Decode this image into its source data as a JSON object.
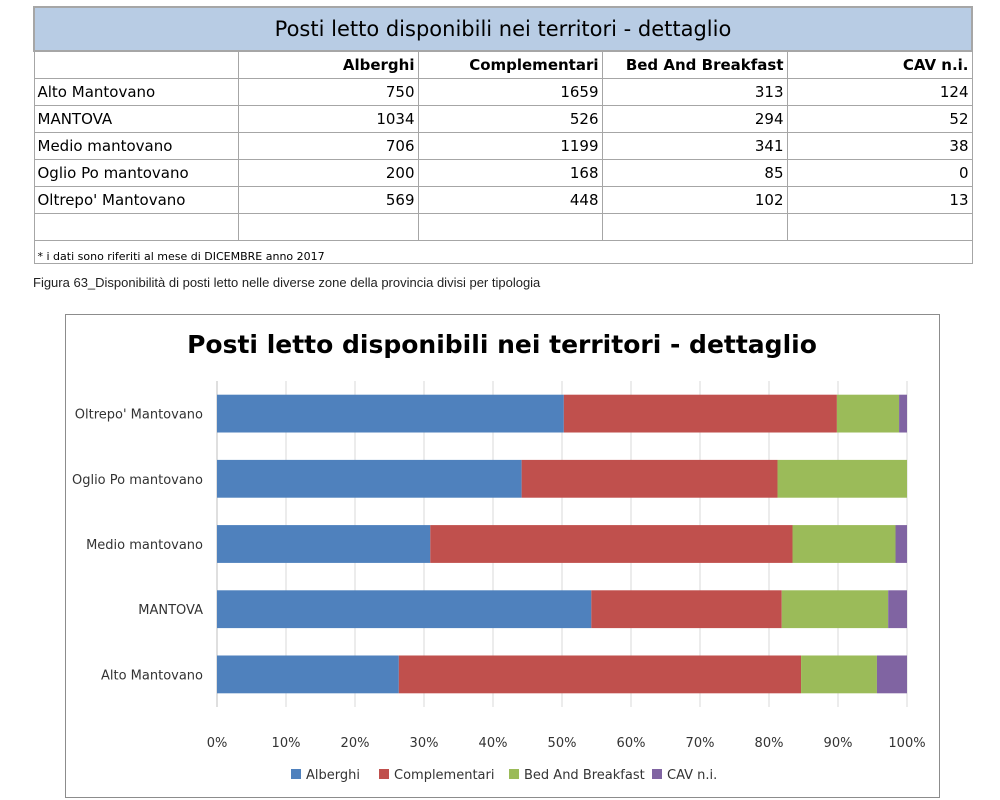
{
  "table": {
    "title": "Posti letto disponibili nei territori - dettaglio",
    "columns": [
      "",
      "Alberghi",
      "Complementari",
      "Bed And Breakfast",
      "CAV n.i."
    ],
    "rows": [
      {
        "name": "Alto Mantovano",
        "values": [
          "750",
          "1659",
          "313",
          "124"
        ]
      },
      {
        "name": "MANTOVA",
        "values": [
          "1034",
          "526",
          "294",
          "52"
        ]
      },
      {
        "name": "Medio mantovano",
        "values": [
          "706",
          "1199",
          "341",
          "38"
        ]
      },
      {
        "name": "Oglio Po mantovano",
        "values": [
          "200",
          "168",
          "85",
          "0"
        ]
      },
      {
        "name": "Oltrepo' Mantovano",
        "values": [
          "569",
          "448",
          "102",
          "13"
        ]
      }
    ],
    "note": "* i dati sono riferiti al mese di DICEMBRE anno 2017"
  },
  "caption": "Figura 63_Disponibilità di posti letto nelle diverse zone della provincia divisi per tipologia",
  "chart_data": {
    "type": "bar",
    "orientation": "horizontal",
    "stacking": "percent",
    "title": "Posti letto disponibili nei territori - dettaglio",
    "categories": [
      "Oltrepo' Mantovano",
      "Oglio Po mantovano",
      "Medio mantovano",
      "MANTOVA",
      "Alto Mantovano"
    ],
    "series": [
      {
        "name": "Alberghi",
        "color": "#4f81bd",
        "values": [
          569,
          200,
          706,
          1034,
          750
        ]
      },
      {
        "name": "Complementari",
        "color": "#c0504d",
        "values": [
          448,
          168,
          1199,
          526,
          1659
        ]
      },
      {
        "name": "Bed And Breakfast",
        "color": "#9bbb59",
        "values": [
          102,
          85,
          341,
          294,
          313
        ]
      },
      {
        "name": "CAV n.i.",
        "color": "#8064a2",
        "values": [
          13,
          0,
          38,
          52,
          124
        ]
      }
    ],
    "x_ticks": [
      "0%",
      "10%",
      "20%",
      "30%",
      "40%",
      "50%",
      "60%",
      "70%",
      "80%",
      "90%",
      "100%"
    ],
    "xlim": [
      0,
      100
    ],
    "grid": true,
    "legend_position": "bottom"
  }
}
